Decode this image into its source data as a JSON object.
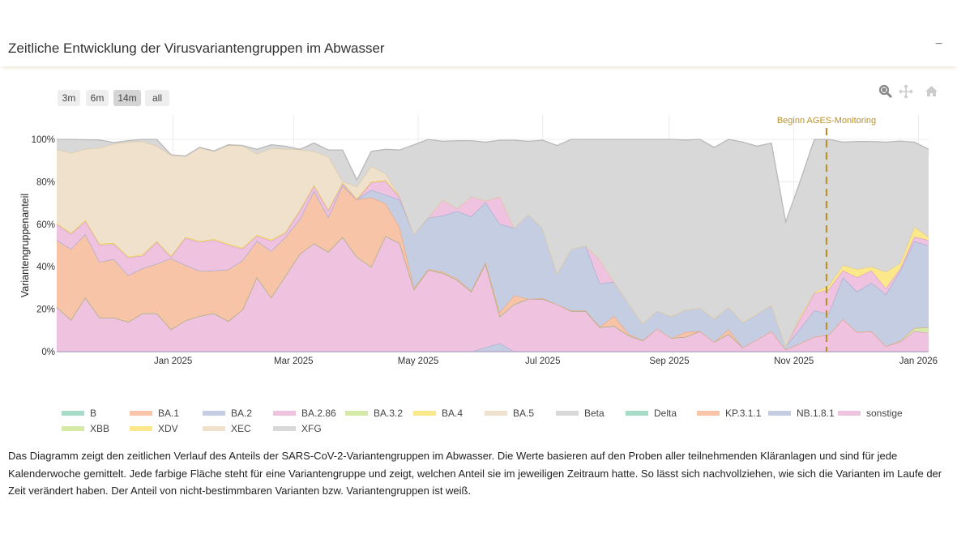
{
  "header": {
    "title": "Zeitliche Entwicklung der Virusvariantengruppen im Abwasser",
    "collapse_label": "−"
  },
  "range_buttons": [
    {
      "label": "3m",
      "active": false
    },
    {
      "label": "6m",
      "active": false
    },
    {
      "label": "14m",
      "active": true
    },
    {
      "label": "all",
      "active": false
    }
  ],
  "modebar": {
    "zoom": "zoom-icon",
    "pan": "pan-icon",
    "reset": "home-icon"
  },
  "chart_data": {
    "type": "area",
    "stacked": true,
    "ylabel": "Variantengruppenanteil",
    "xlabel": "",
    "ylim": [
      0,
      100
    ],
    "y_ticks": [
      "0%",
      "20%",
      "40%",
      "60%",
      "80%",
      "100%"
    ],
    "x_ticks": [
      {
        "date": "2025-01-01",
        "label": "Jan 2025"
      },
      {
        "date": "2025-03-01",
        "label": "Mar 2025"
      },
      {
        "date": "2025-05-01",
        "label": "May 2025"
      },
      {
        "date": "2025-07-01",
        "label": "Jul 2025"
      },
      {
        "date": "2025-09-01",
        "label": "Sep 2025"
      },
      {
        "date": "2025-11-01",
        "label": "Nov 2025"
      },
      {
        "date": "2026-01-01",
        "label": "Jan 2026"
      }
    ],
    "xlim": [
      "2024-11-05",
      "2026-01-06"
    ],
    "grid": true,
    "legend_position": "bottom",
    "annotation": {
      "label": "Beginn AGES-Monitoring",
      "date": "2025-11-17",
      "color": "#b8922e"
    },
    "x": [
      "2024-11-05",
      "2024-11-12",
      "2024-11-19",
      "2024-11-26",
      "2024-12-03",
      "2024-12-10",
      "2024-12-17",
      "2024-12-24",
      "2024-12-31",
      "2025-01-07",
      "2025-01-14",
      "2025-01-21",
      "2025-01-28",
      "2025-02-04",
      "2025-02-11",
      "2025-02-18",
      "2025-02-25",
      "2025-03-04",
      "2025-03-11",
      "2025-03-18",
      "2025-03-25",
      "2025-04-01",
      "2025-04-08",
      "2025-04-15",
      "2025-04-22",
      "2025-04-29",
      "2025-05-06",
      "2025-05-13",
      "2025-05-20",
      "2025-05-27",
      "2025-06-03",
      "2025-06-10",
      "2025-06-17",
      "2025-06-24",
      "2025-07-01",
      "2025-07-08",
      "2025-07-15",
      "2025-07-22",
      "2025-07-29",
      "2025-08-05",
      "2025-08-12",
      "2025-08-19",
      "2025-08-26",
      "2025-09-02",
      "2025-09-09",
      "2025-09-16",
      "2025-09-23",
      "2025-09-30",
      "2025-10-07",
      "2025-10-14",
      "2025-10-21",
      "2025-10-28",
      "2025-11-04",
      "2025-11-11",
      "2025-11-18",
      "2025-11-25",
      "2025-12-02",
      "2025-12-09",
      "2025-12-16",
      "2025-12-23",
      "2025-12-30",
      "2026-01-06"
    ],
    "series": [
      {
        "name": "B",
        "color": "#a6dcc8",
        "line": "#8cc7b2",
        "values": [
          0,
          0,
          0,
          0,
          0,
          0,
          0,
          0,
          0,
          0,
          0,
          0,
          0,
          0,
          0,
          0,
          0,
          0,
          0,
          0,
          0,
          0,
          0,
          0,
          0,
          0,
          0,
          0,
          0,
          0,
          0,
          0,
          0,
          0,
          0,
          0,
          0,
          0,
          0,
          0,
          0,
          0,
          0,
          0,
          0,
          0,
          0,
          0,
          0,
          0,
          0,
          0,
          0,
          0,
          0,
          0,
          0,
          0,
          0,
          0,
          0,
          0
        ]
      },
      {
        "name": "BA.1",
        "color": "#f7c4a8",
        "line": "#e8a888",
        "values": [
          0,
          0,
          0,
          0,
          0,
          0,
          0,
          0,
          0,
          0,
          0,
          0,
          0,
          0,
          0,
          0,
          0,
          0,
          0,
          0,
          0,
          0,
          0,
          0,
          0,
          0,
          0,
          0,
          0,
          0,
          0,
          0,
          0,
          0,
          0,
          0,
          0,
          0,
          0,
          0,
          0,
          0,
          0,
          0,
          0,
          0,
          0,
          0,
          0,
          0,
          0,
          0,
          0,
          0,
          0,
          0,
          0,
          0,
          0,
          0,
          0,
          0
        ]
      },
      {
        "name": "BA.2",
        "color": "#c5cde2",
        "line": "#a4acd4",
        "values": [
          0,
          0,
          0,
          0,
          0,
          0,
          0,
          0,
          0,
          0,
          0,
          0,
          0,
          0,
          0,
          0,
          0,
          0,
          0,
          0,
          0,
          0,
          0,
          0,
          0,
          0,
          0,
          0,
          0,
          0,
          2,
          4,
          0,
          0,
          0,
          0,
          0,
          0,
          0,
          0,
          0,
          0,
          0,
          0,
          0,
          0,
          0,
          0,
          0,
          0,
          0,
          0,
          0,
          0,
          0,
          0,
          0,
          0,
          0,
          0,
          0,
          0
        ]
      },
      {
        "name": "BA.2.86",
        "color": "#efc3df",
        "line": "#d9a0c8",
        "values": [
          21,
          15,
          25.5,
          16,
          16,
          14,
          18,
          18,
          10.5,
          14.6,
          16.8,
          18,
          14.4,
          19.7,
          35,
          25.5,
          35.7,
          46,
          51,
          47,
          54,
          44.6,
          40,
          54.5,
          51,
          29.3,
          38.5,
          37,
          33.8,
          28.3,
          39.4,
          12.6,
          22.3,
          24.8,
          24.8,
          22.3,
          19.1,
          19.1,
          11.5,
          12.1,
          7.6,
          5.2,
          10.8,
          6.4,
          7,
          9.6,
          4.5,
          8.3,
          1.9,
          5.7,
          9.6,
          1,
          3.8,
          7,
          7.9,
          15.3,
          9.2,
          9.6,
          2.5,
          4.5,
          9.6,
          8.9
        ]
      },
      {
        "name": "BA.3.2",
        "color": "#d4eaa6",
        "line": "#9db07a",
        "values": [
          0,
          0,
          0,
          0,
          0,
          0,
          0,
          0,
          0,
          0,
          0,
          0,
          0,
          0,
          0,
          0,
          0,
          0,
          0,
          0,
          0,
          0,
          0,
          0,
          0,
          0,
          0,
          0,
          0,
          0,
          0,
          0,
          0,
          0,
          0,
          0,
          0,
          0,
          0,
          0,
          0,
          0,
          0,
          0,
          0,
          0,
          0,
          0,
          0,
          0,
          0,
          0,
          0,
          0,
          0,
          0,
          0,
          0,
          0,
          0.5,
          1.5,
          2.6
        ]
      },
      {
        "name": "BA.4",
        "color": "#fbe88a",
        "line": "#e8cc5a",
        "values": [
          0,
          0,
          0,
          0,
          0,
          0,
          0,
          0,
          0,
          0,
          0,
          0,
          0,
          0,
          0,
          0,
          0,
          0,
          0,
          0,
          0,
          0,
          0,
          0,
          0,
          0,
          0,
          0,
          0,
          0,
          0,
          0,
          0,
          0,
          0,
          0,
          0,
          0,
          0,
          0,
          0,
          0,
          0,
          0,
          0,
          0,
          0,
          0,
          0,
          0,
          0,
          0,
          0,
          0,
          0,
          0,
          0,
          0,
          0,
          0,
          0,
          0
        ]
      },
      {
        "name": "BA.5",
        "color": "#efe1cb",
        "line": "#dccaa8",
        "values": [
          0,
          0,
          0,
          0,
          0,
          0,
          0,
          0,
          0,
          0,
          0,
          0,
          0,
          0,
          0,
          0,
          0,
          0,
          0,
          0,
          0,
          0,
          0,
          0,
          0,
          0,
          0,
          0,
          0,
          0,
          0,
          0,
          0,
          0,
          0,
          0,
          0,
          0,
          0,
          0,
          0,
          0,
          0,
          0,
          0,
          0,
          0,
          0,
          0,
          0,
          0,
          0,
          0,
          0,
          0,
          0,
          0,
          0,
          0,
          0,
          0,
          0
        ]
      },
      {
        "name": "Beta",
        "color": "#d8d8d8",
        "line": "#b8b8b8",
        "values": [
          0,
          0,
          0,
          0,
          0,
          0,
          0,
          0,
          0,
          0,
          0,
          0,
          0,
          0,
          0,
          0,
          0,
          0,
          0,
          0,
          0,
          0,
          0,
          0,
          0,
          0,
          0,
          0,
          0,
          0,
          0,
          0,
          0,
          0,
          0,
          0,
          0,
          0,
          0,
          0,
          0,
          0,
          0,
          0,
          0,
          0,
          0,
          0,
          0,
          0,
          0,
          0,
          0,
          0,
          0,
          0,
          0,
          0,
          0,
          0,
          0,
          0
        ]
      },
      {
        "name": "Delta",
        "color": "#a6dcc8",
        "line": "#8cc7b2",
        "values": [
          0,
          0,
          0,
          0,
          0,
          0,
          0,
          0,
          0,
          0,
          0,
          0,
          0,
          0,
          0,
          0,
          0,
          0,
          0,
          0,
          0,
          0,
          0,
          0,
          0,
          0,
          0,
          0,
          0,
          0,
          0,
          0,
          0,
          0,
          0,
          0,
          0,
          0,
          0,
          0,
          0,
          0,
          0,
          0,
          0,
          0,
          0,
          0,
          0,
          0,
          0,
          0,
          0,
          0,
          0,
          0,
          0,
          0,
          0,
          0,
          0,
          0
        ]
      },
      {
        "name": "KP.3.1.1",
        "color": "#f7c4a8",
        "line": "#e8a888",
        "values": [
          31.5,
          33.4,
          29.9,
          26.3,
          27.6,
          22,
          21.2,
          23.4,
          33.5,
          26.2,
          21.2,
          20.2,
          24.3,
          23.3,
          17.2,
          21.9,
          18.3,
          16.4,
          24.8,
          16.4,
          24.3,
          27,
          32.6,
          15.3,
          7.6,
          0.7,
          0.4,
          0.6,
          0.6,
          0.4,
          0.9,
          1.9,
          4.2,
          0,
          0.4,
          0,
          0.3,
          0.3,
          0.3,
          4.7,
          0.7,
          0.2,
          0,
          0,
          2.2,
          0,
          0,
          2.2,
          0,
          0,
          0,
          0,
          0,
          0,
          0,
          0,
          0,
          0,
          0,
          0,
          0,
          0
        ]
      },
      {
        "name": "NB.1.8.1",
        "color": "#c5cde2",
        "line": "#a4acd4",
        "values": [
          0,
          0,
          0,
          0,
          0,
          0,
          0,
          0,
          0,
          0,
          0,
          0,
          0,
          0,
          0,
          0,
          0,
          0,
          0,
          0,
          0,
          0,
          3.6,
          4.1,
          13,
          25.4,
          24.1,
          26.4,
          31.8,
          35,
          28,
          41.6,
          31.8,
          39.9,
          32.8,
          14.6,
          29,
          30.6,
          20.3,
          16.1,
          14.6,
          7.8,
          8.6,
          10.2,
          10.5,
          11,
          11,
          10.5,
          11.9,
          12.1,
          12.3,
          1.5,
          7,
          12.4,
          9.9,
          19.7,
          19.1,
          22.9,
          24.5,
          32.9,
          40.9,
          38.4
        ]
      },
      {
        "name": "sonstige",
        "color": "#efc3df",
        "line": "#d9a0c8",
        "values": [
          7.5,
          7,
          6,
          8,
          7.1,
          8.3,
          6,
          10.2,
          0.6,
          12.7,
          13.6,
          14.3,
          11.6,
          5.4,
          2.3,
          4.8,
          1.8,
          3.8,
          2.2,
          3.1,
          0.9,
          0,
          3.4,
          6.4,
          1,
          0,
          0.4,
          7.6,
          1.3,
          9.5,
          0.8,
          13.1,
          0,
          0,
          0,
          0,
          0,
          0,
          11.2,
          0,
          0,
          0,
          0,
          0,
          0,
          0,
          0,
          0,
          0,
          0,
          0,
          0,
          4.5,
          8,
          11.5,
          3.2,
          6.7,
          5.7,
          2.9,
          1,
          2.1,
          2.6
        ]
      },
      {
        "name": "XBB",
        "color": "#d4eaa6",
        "line": "#9db07a",
        "values": [
          0,
          0,
          0,
          0,
          0,
          0,
          0,
          0,
          0,
          0,
          0,
          0,
          0,
          0,
          0,
          0,
          0,
          0,
          0,
          0,
          0,
          0,
          0,
          0,
          0,
          0,
          0,
          0,
          0,
          0,
          0,
          0,
          0,
          0,
          0,
          0,
          0,
          0,
          0,
          0,
          0,
          0,
          0,
          0,
          0,
          0,
          0,
          0,
          0,
          0,
          0,
          0,
          0,
          0,
          0,
          0,
          0,
          0,
          0,
          0,
          0,
          0
        ]
      },
      {
        "name": "XDV",
        "color": "#fbe88a",
        "line": "#e8cc5a",
        "values": [
          0.5,
          0.5,
          0.5,
          0.5,
          0.5,
          0.5,
          0.5,
          0.5,
          0.5,
          0.5,
          0.5,
          0.5,
          0.5,
          0.5,
          0.5,
          0.5,
          0.5,
          0.5,
          0.5,
          0.5,
          0.5,
          0.5,
          0.5,
          0.5,
          0.5,
          0,
          0,
          0,
          0,
          0,
          0,
          0,
          0,
          0,
          0,
          0,
          0,
          0,
          0,
          0,
          0,
          0,
          0,
          0,
          0,
          0,
          0,
          0,
          0,
          0,
          0,
          0,
          1.3,
          0.6,
          1.9,
          2.6,
          3.9,
          1.9,
          7.7,
          2.8,
          4.8,
          1.6
        ]
      },
      {
        "name": "XEC",
        "color": "#efe1cb",
        "line": "#dccaa8",
        "values": [
          34.8,
          37.7,
          33.6,
          45.2,
          46.8,
          53.9,
          53.4,
          44.7,
          47.6,
          38.1,
          44.1,
          41.5,
          46.4,
          48.2,
          38.2,
          43.1,
          39.2,
          28.6,
          15.8,
          25,
          0.6,
          5.6,
          7.2,
          3.2,
          0,
          0,
          0,
          0,
          0,
          0,
          0,
          0,
          0,
          0,
          0,
          0,
          0,
          0,
          0,
          0,
          0,
          0,
          0,
          0,
          0,
          0,
          0,
          0,
          0,
          0,
          0,
          0,
          0,
          0,
          0,
          0,
          0,
          0,
          0,
          0,
          0,
          0
        ]
      },
      {
        "name": "XFG",
        "color": "#d8d8d8",
        "line": "#b8b8b8",
        "values": [
          4.7,
          6.4,
          4.3,
          3.7,
          0.5,
          0.7,
          0.9,
          3.2,
          0,
          0,
          0,
          0,
          0.3,
          0,
          2.1,
          1.7,
          1.3,
          0,
          4,
          3,
          14.7,
          3.2,
          7,
          11.3,
          21.9,
          42.1,
          36.6,
          27.5,
          31.9,
          26.2,
          27.6,
          26.4,
          41.3,
          34.4,
          41.6,
          60.2,
          51.6,
          50,
          56.7,
          67.1,
          77.1,
          86.8,
          80.6,
          83.4,
          80,
          79.4,
          80.7,
          79,
          84.9,
          79,
          76.4,
          58.6,
          63.4,
          72,
          68.8,
          57.9,
          60.1,
          58.9,
          61.1,
          57.5,
          39.8,
          41.2
        ]
      }
    ]
  },
  "description": "Das Diagramm zeigt den zeitlichen Verlauf des Anteils der SARS-CoV-2-Variantengruppen im Abwasser. Die Werte basieren auf den Proben aller teilnehmenden Kläranlagen und sind für jede Kalenderwoche gemittelt. Jede farbige Fläche steht für eine Variantengruppe und zeigt, welchen Anteil sie im jeweiligen Zeitraum hatte. So lässt sich nachvollziehen, wie sich die Varianten im Laufe der Zeit verändert haben. Der Anteil von nicht-bestimmbaren Varianten bzw. Variantengruppen ist weiß."
}
